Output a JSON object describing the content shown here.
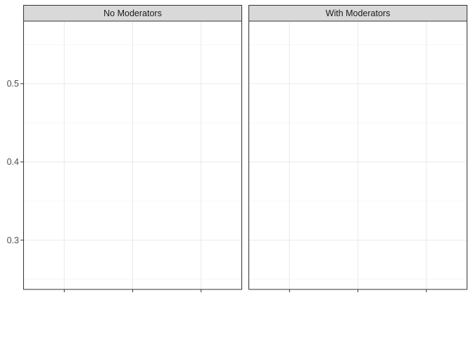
{
  "chart_data": {
    "type": "line",
    "facets": [
      {
        "label": "No Moderators",
        "series": []
      },
      {
        "label": "With Moderators",
        "series": []
      }
    ],
    "y_ticks": [
      0.3,
      0.4,
      0.5
    ],
    "ylim": [
      0.237,
      0.58
    ],
    "x_tick_count": 3,
    "title": "",
    "xlabel": "",
    "ylabel": "",
    "theme": "bw",
    "grid": true,
    "legend": "none",
    "colors": {
      "panel_border": "#333333",
      "strip_fill": "#d9d9d9",
      "grid_major": "#ebebeb",
      "grid_minor": "#f5f5f5",
      "tick": "#333333",
      "text": "#4d4d4d"
    }
  }
}
